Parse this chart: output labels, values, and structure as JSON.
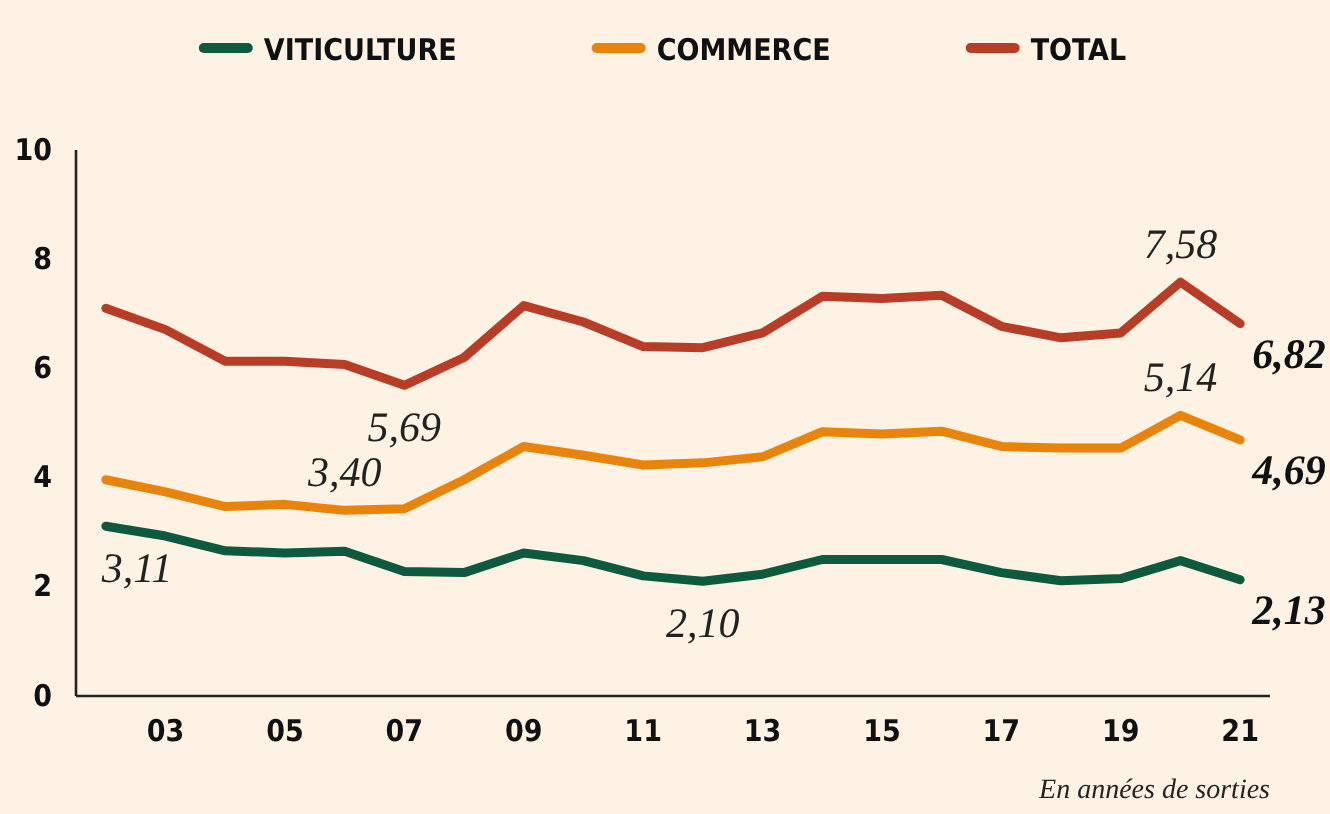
{
  "chart_data": {
    "type": "line",
    "x": [
      2002,
      2003,
      2004,
      2005,
      2006,
      2007,
      2008,
      2009,
      2010,
      2011,
      2012,
      2013,
      2014,
      2015,
      2016,
      2017,
      2018,
      2019,
      2020,
      2021
    ],
    "series": [
      {
        "name": "VITICULTURE",
        "color": "#0e5a3e",
        "values": [
          3.11,
          2.93,
          2.66,
          2.62,
          2.65,
          2.28,
          2.26,
          2.62,
          2.48,
          2.2,
          2.1,
          2.23,
          2.5,
          2.5,
          2.5,
          2.26,
          2.11,
          2.15,
          2.48,
          2.13
        ]
      },
      {
        "name": "COMMERCE",
        "color": "#e8830c",
        "values": [
          3.96,
          3.74,
          3.47,
          3.51,
          3.4,
          3.43,
          3.96,
          4.57,
          4.41,
          4.23,
          4.27,
          4.38,
          4.84,
          4.8,
          4.85,
          4.57,
          4.54,
          4.54,
          5.14,
          4.69
        ]
      },
      {
        "name": "TOTAL",
        "color": "#b83d27",
        "values": [
          7.1,
          6.71,
          6.13,
          6.13,
          6.07,
          5.69,
          6.2,
          7.15,
          6.85,
          6.4,
          6.38,
          6.65,
          7.32,
          7.28,
          7.34,
          6.77,
          6.56,
          6.65,
          7.58,
          6.82
        ]
      }
    ],
    "xlim": [
      2001.5,
      2021.5
    ],
    "xticks": [
      {
        "value": 2003,
        "label": "03"
      },
      {
        "value": 2005,
        "label": "05"
      },
      {
        "value": 2007,
        "label": "07"
      },
      {
        "value": 2009,
        "label": "09"
      },
      {
        "value": 2011,
        "label": "11"
      },
      {
        "value": 2013,
        "label": "13"
      },
      {
        "value": 2015,
        "label": "15"
      },
      {
        "value": 2017,
        "label": "17"
      },
      {
        "value": 2019,
        "label": "19"
      },
      {
        "value": 2021,
        "label": "21"
      }
    ],
    "ylim": [
      0,
      10
    ],
    "yticks": [
      0,
      2,
      4,
      6,
      8,
      10
    ],
    "grid": false,
    "legend": "top",
    "marker": "none",
    "line_style": "solid",
    "annotations": [
      {
        "text": "3,11",
        "x": 2002,
        "y": 3.11
      },
      {
        "text": "3,40",
        "x": 2006,
        "y": 3.4
      },
      {
        "text": "5,69",
        "x": 2007,
        "y": 5.69
      },
      {
        "text": "2,10",
        "x": 2012,
        "y": 2.1
      },
      {
        "text": "7,58",
        "x": 2020,
        "y": 7.58
      },
      {
        "text": "5,14",
        "x": 2020,
        "y": 5.14
      },
      {
        "text": "6,82",
        "x": 2021,
        "y": 6.82
      },
      {
        "text": "4,69",
        "x": 2021,
        "y": 4.69
      },
      {
        "text": "2,13",
        "x": 2021,
        "y": 2.13
      },
      "En années de sorties"
    ]
  }
}
